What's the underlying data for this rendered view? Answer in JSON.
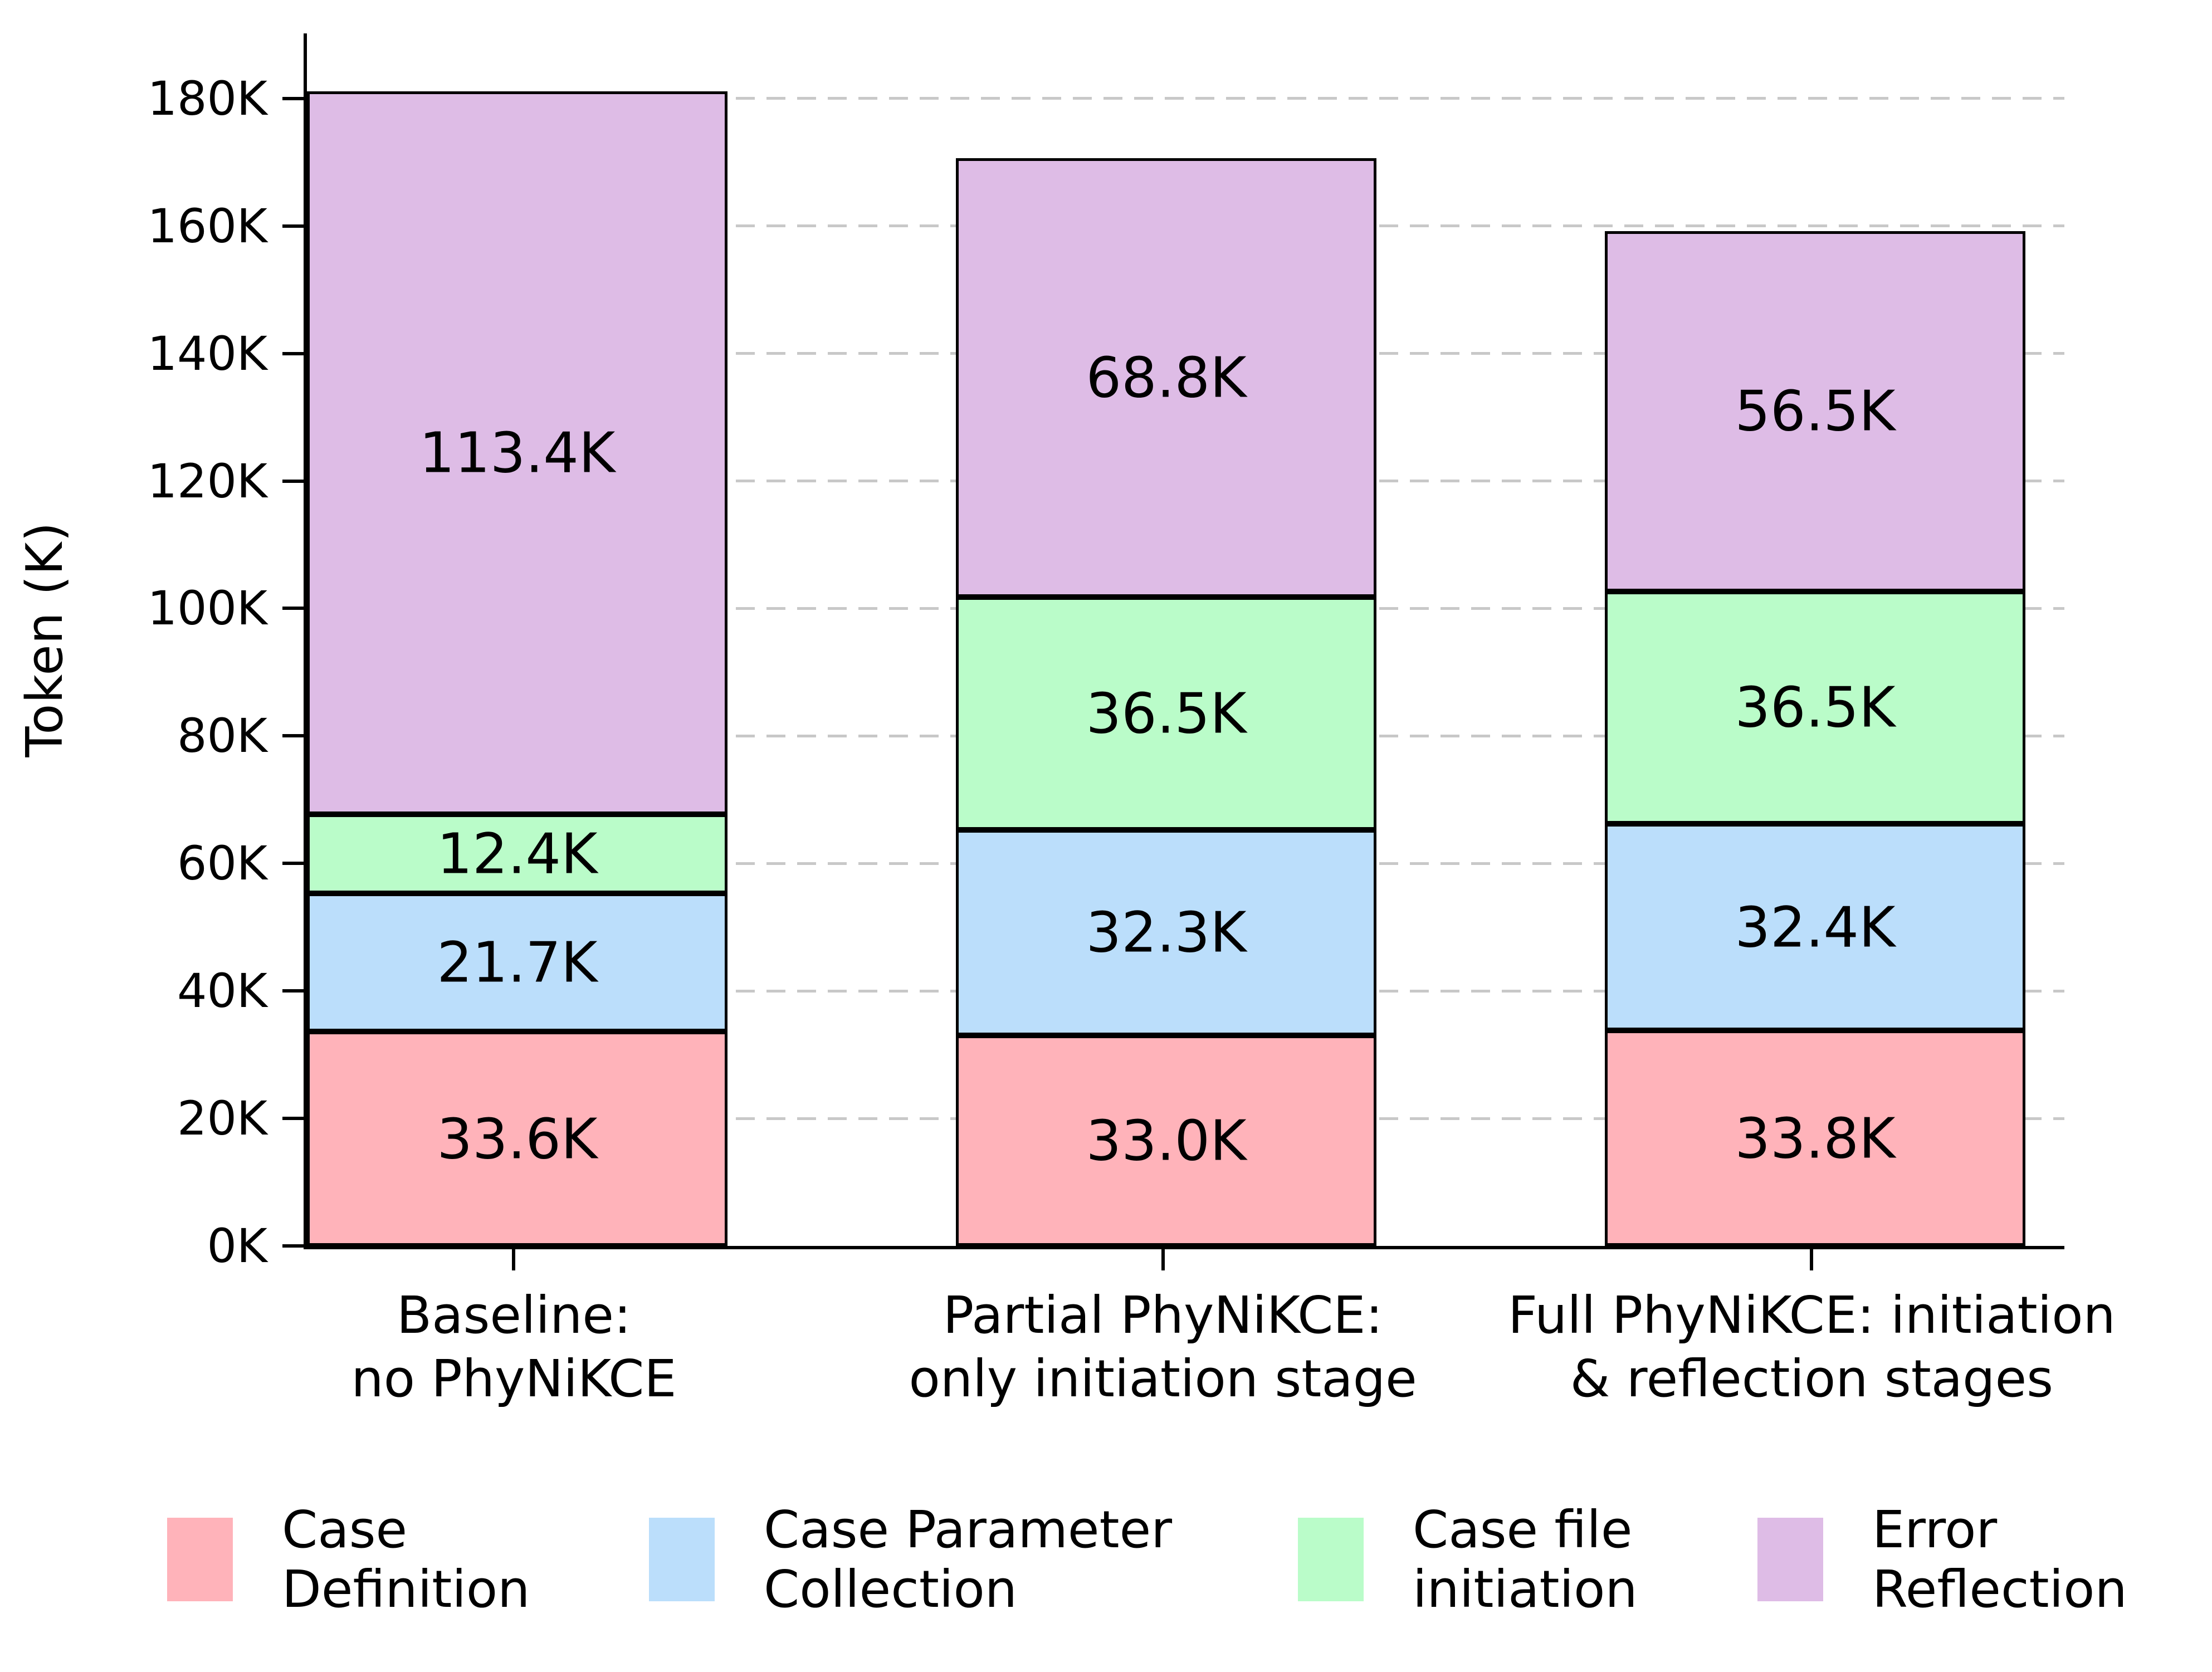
{
  "chart_data": {
    "type": "bar",
    "stacked": true,
    "title": "",
    "ylabel": "Token (K)",
    "ylim": [
      0,
      190.2
    ],
    "yticks": [
      0,
      20,
      40,
      60,
      80,
      100,
      120,
      140,
      160,
      180
    ],
    "ytick_labels": [
      "0K",
      "20K",
      "40K",
      "60K",
      "80K",
      "100K",
      "120K",
      "140K",
      "160K",
      "180K"
    ],
    "grid": {
      "axis": "y",
      "style": "dashed",
      "color": "#c8c8c8"
    },
    "bar_edge_color": "#000000",
    "text_color": "#000000",
    "categories": [
      {
        "line1": "Baseline:",
        "line2": "no PhyNiKCE"
      },
      {
        "line1": "Partial PhyNiKCE:",
        "line2": "only initiation stage"
      },
      {
        "line1": "Full PhyNiKCE: initiation",
        "line2": "& reflection stages"
      }
    ],
    "series": [
      {
        "name": "Case Definition",
        "color": "#ffb3ba",
        "values": [
          33.6,
          33.0,
          33.8
        ],
        "labels": [
          "33.6K",
          "33.0K",
          "33.8K"
        ]
      },
      {
        "name": "Case Parameter Collection",
        "color": "#bbdefb",
        "values": [
          21.7,
          32.3,
          32.4
        ],
        "labels": [
          "21.7K",
          "32.3K",
          "32.4K"
        ]
      },
      {
        "name": "Case file initiation",
        "color": "#bafcc9",
        "values": [
          12.4,
          36.5,
          36.5
        ],
        "labels": [
          "12.4K",
          "36.5K",
          "36.5K"
        ]
      },
      {
        "name": "Error Reflection",
        "color": "#debce6",
        "values": [
          113.4,
          68.8,
          56.5
        ],
        "labels": [
          "113.4K",
          "68.8K",
          "56.5K"
        ]
      }
    ],
    "legend_items": [
      {
        "line1": "Case",
        "line2": "Definition",
        "color": "#ffb3ba"
      },
      {
        "line1": "Case Parameter",
        "line2": "Collection",
        "color": "#bbdefb"
      },
      {
        "line1": "Case file",
        "line2": "initiation",
        "color": "#bafcc9"
      },
      {
        "line1": "Error",
        "line2": "Reflection",
        "color": "#debce6"
      }
    ]
  }
}
